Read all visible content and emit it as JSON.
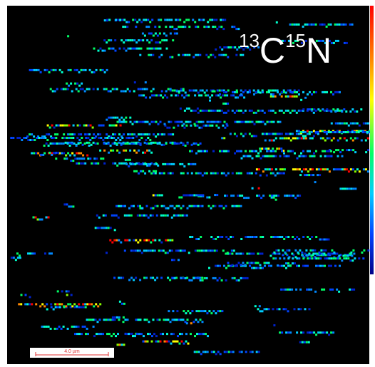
{
  "label": {
    "mass1": "13",
    "element1": "C",
    "mass2": "15",
    "element2": "N"
  },
  "scale_bar": {
    "label": "4.0 µm"
  }
}
